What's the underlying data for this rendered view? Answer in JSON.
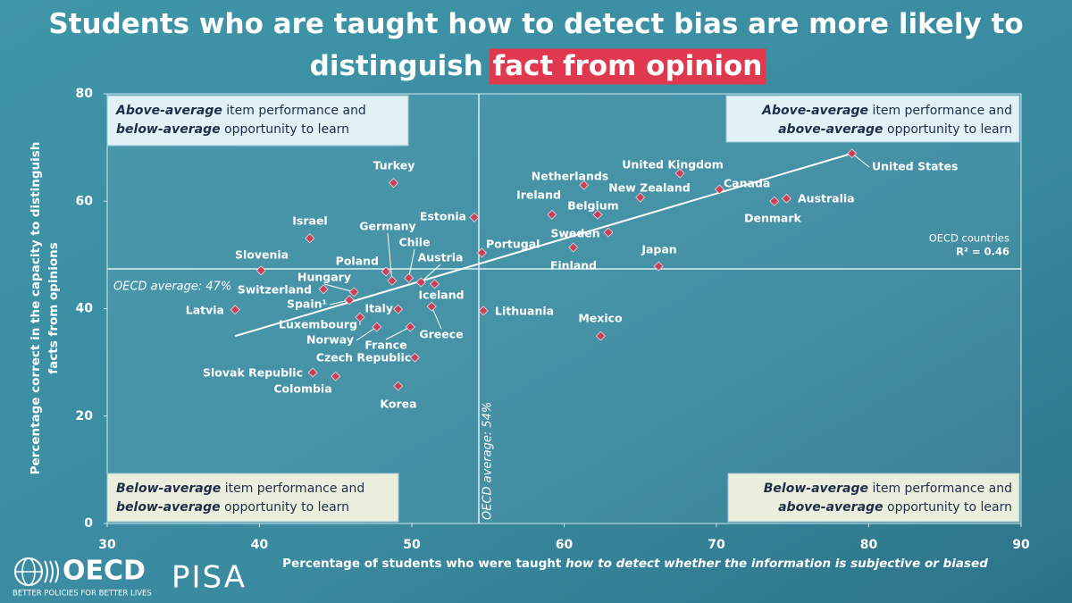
{
  "chart_data": {
    "type": "scatter",
    "title_lines": [
      [
        "Students who are taught how to detect bias are more likely to"
      ],
      [
        "distinguish ",
        "fact from opinion"
      ]
    ],
    "x_label": [
      "Percentage of students who were taught ",
      "how to detect whether the information is subjective or biased"
    ],
    "y_label": [
      "Percentage correct in the capacity to distinguish",
      "facts from opinions"
    ],
    "categories": [
      "United States",
      "United Kingdom",
      "Canada",
      "Australia",
      "Denmark",
      "New Zealand",
      "Netherlands",
      "Ireland",
      "Belgium",
      "Sweden",
      "Finland",
      "Japan",
      "Estonia",
      "Portugal",
      "Lithuania",
      "Mexico",
      "Turkey",
      "Israel",
      "Slovenia",
      "Germany",
      "Poland",
      "Chile",
      "Austria",
      "Hungary",
      "Switzerland",
      "Spain¹",
      "Latvia",
      "Italy",
      "Iceland",
      "Luxembourg",
      "Norway",
      "France",
      "Czech Republic",
      "Slovak Republic",
      "Colombia",
      "Korea",
      "Greece"
    ],
    "x": [
      78.9,
      67.6,
      70.2,
      74.6,
      73.8,
      65.0,
      61.3,
      59.2,
      62.2,
      62.9,
      60.6,
      66.2,
      54.1,
      54.6,
      54.7,
      62.4,
      48.8,
      43.3,
      40.1,
      48.7,
      48.3,
      49.8,
      50.6,
      46.2,
      44.2,
      45.9,
      38.4,
      49.1,
      51.5,
      46.6,
      47.7,
      49.9,
      50.2,
      43.5,
      45.0,
      49.1,
      51.3
    ],
    "values": [
      68.9,
      65.2,
      62.2,
      60.5,
      60.0,
      60.7,
      63.0,
      57.5,
      57.5,
      54.2,
      51.4,
      47.9,
      57.0,
      50.4,
      39.6,
      34.9,
      63.4,
      53.1,
      47.1,
      45.2,
      46.9,
      45.7,
      44.9,
      43.1,
      43.6,
      41.6,
      39.8,
      39.9,
      44.6,
      38.4,
      36.6,
      36.6,
      30.9,
      28.1,
      27.4,
      25.6,
      40.4
    ],
    "color": "#c8415a",
    "xlim": [
      30,
      90
    ],
    "xticks": [
      30,
      40,
      50,
      60,
      70,
      80,
      90
    ],
    "ylim": [
      0,
      80
    ],
    "yticks": [
      0,
      20,
      40,
      60,
      80
    ],
    "trend_line": {
      "x": [
        38.4,
        78.9
      ],
      "y": [
        34.9,
        68.9
      ]
    },
    "x_average": {
      "value": 54.4,
      "label": "OECD average: 54%"
    },
    "y_average": {
      "value": 47.4,
      "label": "OECD average: 47%"
    },
    "fit_note": [
      "OECD countries",
      "R² = 0.46"
    ],
    "notes": [
      {
        "corner": "top-left",
        "lines": [
          [
            "Above-average",
            " item performance and"
          ],
          [
            "below-average",
            " opportunity to learn"
          ]
        ]
      },
      {
        "corner": "top-right",
        "lines": [
          [
            "Above-average",
            " item performance and"
          ],
          [
            "above-average",
            " opportunity to learn"
          ]
        ]
      },
      {
        "corner": "bottom-left",
        "lines": [
          [
            "Below-average",
            " item performance and"
          ],
          [
            "below-average",
            " opportunity to learn"
          ]
        ]
      },
      {
        "corner": "bottom-right",
        "lines": [
          [
            "Below-average",
            " item performance and"
          ],
          [
            "above-average",
            " opportunity to learn"
          ]
        ]
      }
    ]
  },
  "branding": {
    "oecd": "OECD",
    "tagline": "BETTER POLICIES FOR BETTER LIVES",
    "pisa": "PISA"
  }
}
